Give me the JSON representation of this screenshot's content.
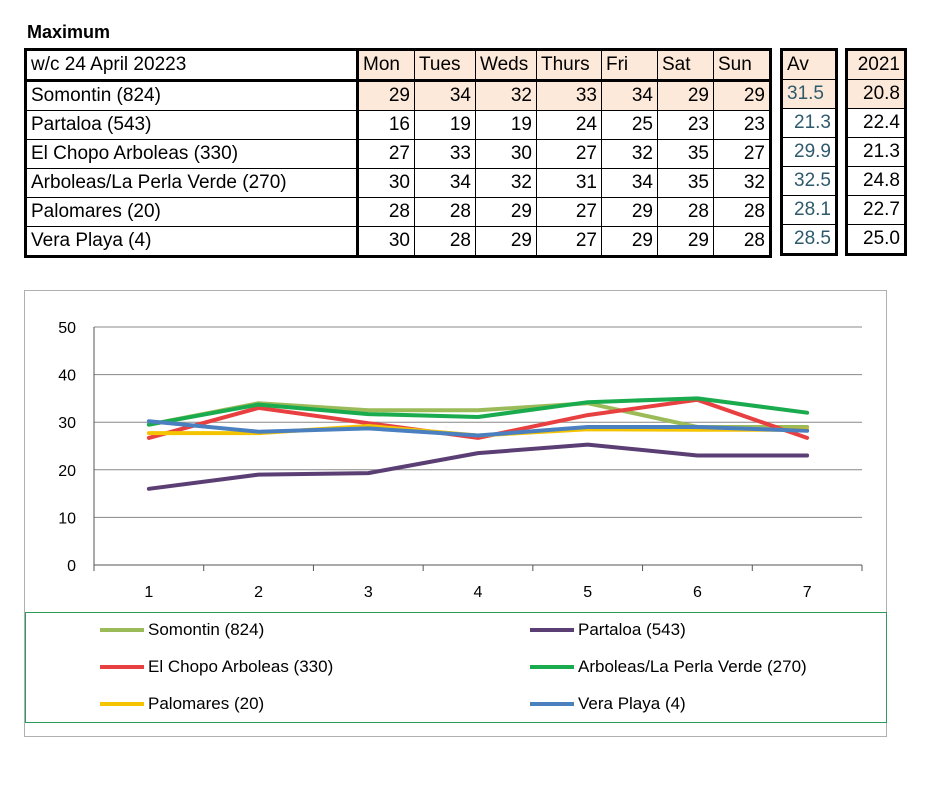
{
  "heading": "Maximum",
  "table": {
    "week_label": "w/c 24 April 20223",
    "days": [
      "Mon",
      "Tues",
      "Weds",
      "Thurs",
      "Fri",
      "Sat",
      "Sun"
    ],
    "av_header": "Av",
    "year_header": "2021",
    "rows": [
      {
        "name": "Somontin (824)",
        "values": [
          "29",
          "34",
          "32",
          "33",
          "34",
          "29",
          "29"
        ],
        "av": "31.5",
        "year": "20.8"
      },
      {
        "name": "Partaloa (543)",
        "values": [
          "16",
          "19",
          "19",
          "24",
          "25",
          "23",
          "23"
        ],
        "av": "21.3",
        "year": "22.4"
      },
      {
        "name": "El Chopo  Arboleas (330)",
        "values": [
          "27",
          "33",
          "30",
          "27",
          "32",
          "35",
          "27"
        ],
        "av": "29.9",
        "year": "21.3"
      },
      {
        "name": "Arboleas/La Perla Verde (270)",
        "values": [
          "30",
          "34",
          "32",
          "31",
          "34",
          "35",
          "32"
        ],
        "av": "32.5",
        "year": "24.8"
      },
      {
        "name": "Palomares (20)",
        "values": [
          "28",
          "28",
          "29",
          "27",
          "29",
          "28",
          "28"
        ],
        "av": "28.1",
        "year": "22.7"
      },
      {
        "name": "Vera Playa (4)",
        "values": [
          "30",
          "28",
          "29",
          "27",
          "29",
          "29",
          "28"
        ],
        "av": "28.5",
        "year": "25.0"
      }
    ]
  },
  "chart_data": {
    "type": "line",
    "x": [
      "1",
      "2",
      "3",
      "4",
      "5",
      "6",
      "7"
    ],
    "ylim": [
      0,
      50
    ],
    "yticks": [
      "0",
      "10",
      "20",
      "30",
      "40",
      "50"
    ],
    "grid": "horizontal",
    "legend_position": "bottom",
    "series": [
      {
        "name": "Somontin (824)",
        "color": "#9bbb59",
        "values": [
          29.5,
          34,
          32.5,
          32.5,
          34,
          29,
          29
        ]
      },
      {
        "name": "Partaloa (543)",
        "color": "#5b3f74",
        "values": [
          16,
          19,
          19.3,
          23.5,
          25.3,
          23,
          23
        ]
      },
      {
        "name": "El Chopo  Arboleas (330)",
        "color": "#e84040",
        "values": [
          26.7,
          33,
          29.8,
          26.7,
          31.5,
          34.7,
          26.7
        ]
      },
      {
        "name": "Arboleas/La Perla Verde (270)",
        "color": "#1aab4f",
        "values": [
          29.5,
          33.7,
          31.7,
          31.1,
          34.2,
          35,
          32
        ]
      },
      {
        "name": "Palomares (20)",
        "color": "#f5c400",
        "values": [
          27.7,
          27.7,
          29.2,
          27.2,
          28.5,
          28.4,
          28.4
        ]
      },
      {
        "name": "Vera Playa (4)",
        "color": "#4a80bf",
        "values": [
          30.2,
          28,
          28.7,
          27.2,
          29,
          29,
          28.2
        ]
      }
    ]
  }
}
